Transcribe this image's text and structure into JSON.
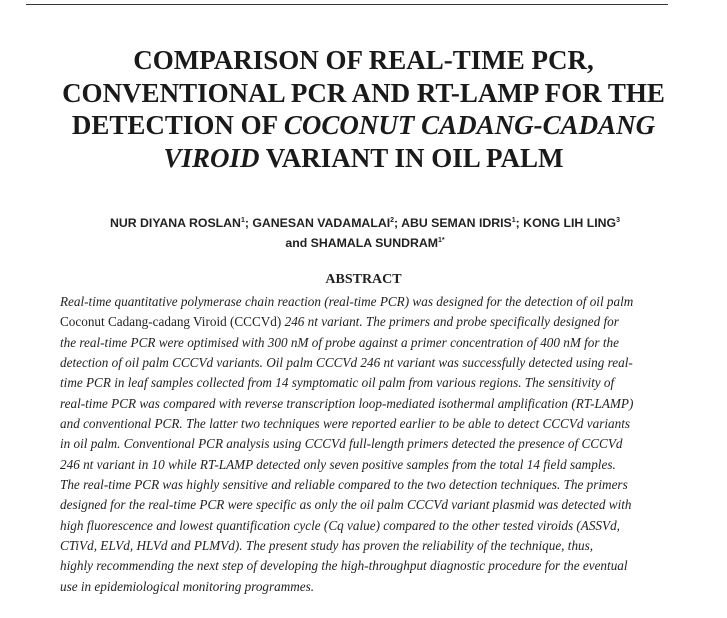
{
  "title_lines": [
    {
      "plain": "COMPARISON OF REAL-TIME PCR,",
      "ital": "",
      "tail": ""
    },
    {
      "plain": "CONVENTIONAL PCR AND RT-LAMP FOR THE",
      "ital": "",
      "tail": ""
    },
    {
      "plain": "DETECTION OF ",
      "ital": "COCONUT CADANG-CADANG",
      "tail": ""
    },
    {
      "plain": "",
      "ital": "VIROID",
      "tail": " VARIANT IN OIL PALM"
    }
  ],
  "authors": {
    "line1": [
      "NUR DIYANA ROSLAN",
      "1",
      "; GANESAN VADAMALAI",
      "2",
      "; ABU SEMAN IDRIS",
      "1",
      "; KONG LIH LING",
      "3"
    ],
    "line2": [
      "and SHAMALA SUNDRAM",
      "1*"
    ]
  },
  "abstract_heading": "ABSTRACT",
  "abstract_lines": [
    "Real-time quantitative polymerase chain reaction (real-time PCR) was designed for the detection of oil palm",
    "Coconut Cadang-cadang Viroid (CCCVd)",
    "the real-time PCR were optimised with 300 nM of probe against a primer concentration of 400 nM for the",
    "detection of oil palm CCCVd variants. Oil palm CCCVd 246 nt variant was successfully detected using real-",
    "time PCR in leaf samples collected from 14 symptomatic oil palm from various regions. The sensitivity of",
    "real-time PCR was compared with reverse transcription loop-mediated isothermal amplification (RT-LAMP)",
    "and conventional PCR. The latter two techniques were reported earlier to be able to detect CCCVd variants",
    "in oil palm. Conventional PCR analysis using CCCVd full-length primers detected the presence of CCCVd",
    "246 nt variant in 10 while RT-LAMP detected only seven positive samples from the total 14 field samples.",
    "The real-time PCR was highly sensitive and reliable compared to the two detection techniques. The primers",
    "designed for the real-time PCR were specific as only the oil palm CCCVd variant plasmid was detected with",
    "high fluorescence and lowest quantification cycle (Cq value) compared to the other tested viroids (ASSVd,",
    "CTiVd, ELVd, HLVd and PLMVd). The present study has proven the reliability of the technique, thus,",
    "highly recommending the next step of developing the high-throughput diagnostic procedure for the eventual",
    "use in epidemiological monitoring programmes."
  ],
  "abstract_line2_tail": " 246 nt variant. The primers and probe specifically designed for"
}
